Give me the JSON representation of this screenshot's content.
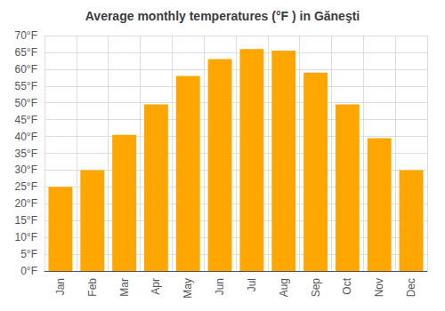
{
  "chart_data": {
    "type": "bar",
    "title": "Average monthly temperatures (°F ) in Găneşti",
    "categories": [
      "Jan",
      "Feb",
      "Mar",
      "Apr",
      "May",
      "Jun",
      "Jul",
      "Aug",
      "Sep",
      "Oct",
      "Nov",
      "Dec"
    ],
    "values": [
      25,
      30,
      40.5,
      49.5,
      58,
      63,
      66,
      65.5,
      59,
      49.5,
      39.5,
      30
    ],
    "color": "#FFA600",
    "ylim": [
      0,
      70
    ],
    "yticks": [
      {
        "value": 0,
        "label": "0°F"
      },
      {
        "value": 5,
        "label": "5°F"
      },
      {
        "value": 10,
        "label": "10°F"
      },
      {
        "value": 15,
        "label": "15°F"
      },
      {
        "value": 20,
        "label": "20°F"
      },
      {
        "value": 25,
        "label": "25°F"
      },
      {
        "value": 30,
        "label": "30°F"
      },
      {
        "value": 35,
        "label": "35°F"
      },
      {
        "value": 40,
        "label": "40°F"
      },
      {
        "value": 45,
        "label": "45°F"
      },
      {
        "value": 50,
        "label": "50°F"
      },
      {
        "value": 55,
        "label": "55°F"
      },
      {
        "value": 60,
        "label": "60°F"
      },
      {
        "value": 65,
        "label": "65°F"
      },
      {
        "value": 70,
        "label": "70°F"
      }
    ],
    "grid": true
  }
}
